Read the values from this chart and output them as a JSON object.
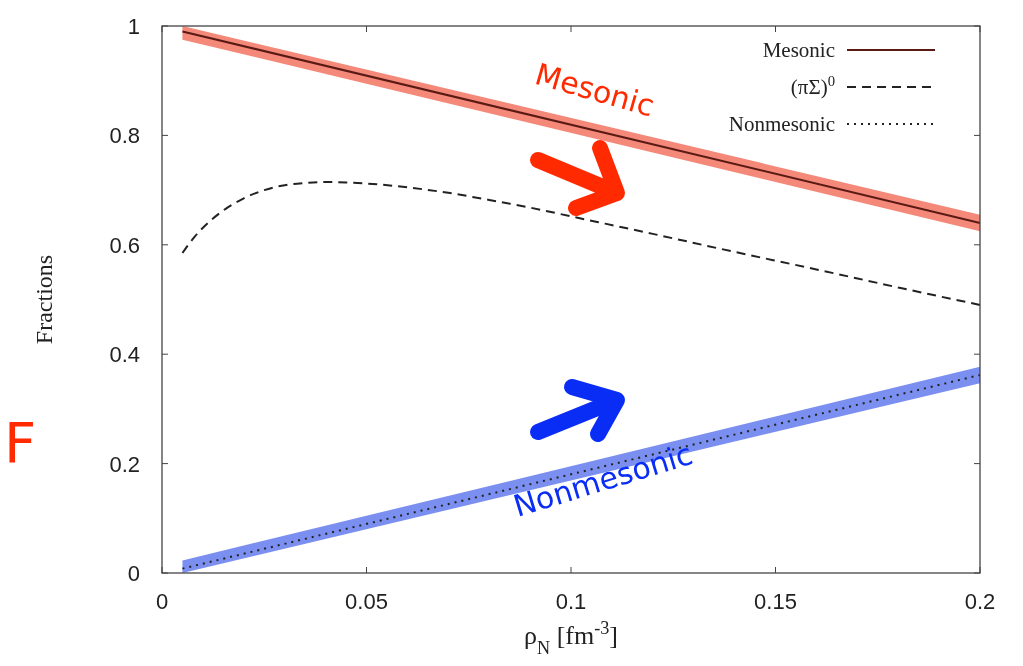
{
  "chart_data": {
    "type": "line",
    "xlabel": "ρ$_{N}$  [fm$^{-3}$]",
    "ylabel": "Fractions",
    "xlim": [
      0,
      0.2
    ],
    "ylim": [
      0,
      1
    ],
    "xticks": [
      0,
      0.05,
      0.1,
      0.15,
      0.2
    ],
    "yticks": [
      0,
      0.2,
      0.4,
      0.6,
      0.8,
      1
    ],
    "legend": "top right",
    "series": [
      {
        "name": "Mesonic",
        "color": "#5a1a14",
        "line_style": "solid",
        "x": [
          0.005,
          0.2
        ],
        "values": [
          0.99,
          0.64
        ],
        "lower": [
          0.975,
          0.625
        ],
        "upper": [
          1,
          0.655
        ]
      },
      {
        "name": "(πΣ)$^{0}$",
        "color": "#222222",
        "line_style": "dashed",
        "x": [
          0.005,
          0.008,
          0.012,
          0.016,
          0.02,
          0.025,
          0.03,
          0.035,
          0.04,
          0.045,
          0.05,
          0.06,
          0.07,
          0.08,
          0.09,
          0.1,
          0.12,
          0.14,
          0.16,
          0.18,
          0.2
        ],
        "values": [
          0.585,
          0.615,
          0.645,
          0.668,
          0.685,
          0.7,
          0.709,
          0.713,
          0.715,
          0.714,
          0.712,
          0.705,
          0.695,
          0.682,
          0.668,
          0.652,
          0.62,
          0.587,
          0.555,
          0.522,
          0.49
        ]
      },
      {
        "name": "Nonmesonic",
        "color": "#222222",
        "line_style": "dotted",
        "x": [
          0.005,
          0.2
        ],
        "values": [
          0.008,
          0.362
        ],
        "lower": [
          0,
          0.347
        ],
        "upper": [
          0.023,
          0.377
        ]
      }
    ],
    "annotations": [
      "Mesonic",
      "Nonmesonic",
      "F"
    ]
  }
}
